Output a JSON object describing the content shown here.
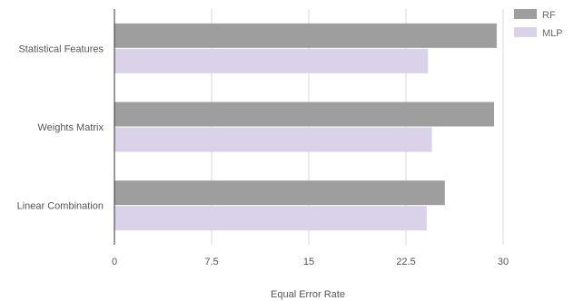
{
  "chart_data": {
    "type": "bar",
    "orientation": "horizontal",
    "categories": [
      "Statistical Features",
      "Weights Matrix",
      "Linear Combination"
    ],
    "series": [
      {
        "name": "RF",
        "values": [
          29.5,
          29.3,
          25.5
        ],
        "color": "#9e9e9e"
      },
      {
        "name": "MLP",
        "values": [
          24.2,
          24.5,
          24.1
        ],
        "color": "#d9d2e9"
      }
    ],
    "xlabel": "Equal Error Rate",
    "ylabel": "",
    "xlim": [
      0,
      30
    ],
    "xticks": [
      "0",
      "7.5",
      "15",
      "22.5",
      "30"
    ],
    "xtick_values": [
      0,
      7.5,
      15,
      22.5,
      30
    ],
    "grid": true,
    "legend_position": "top-right"
  }
}
